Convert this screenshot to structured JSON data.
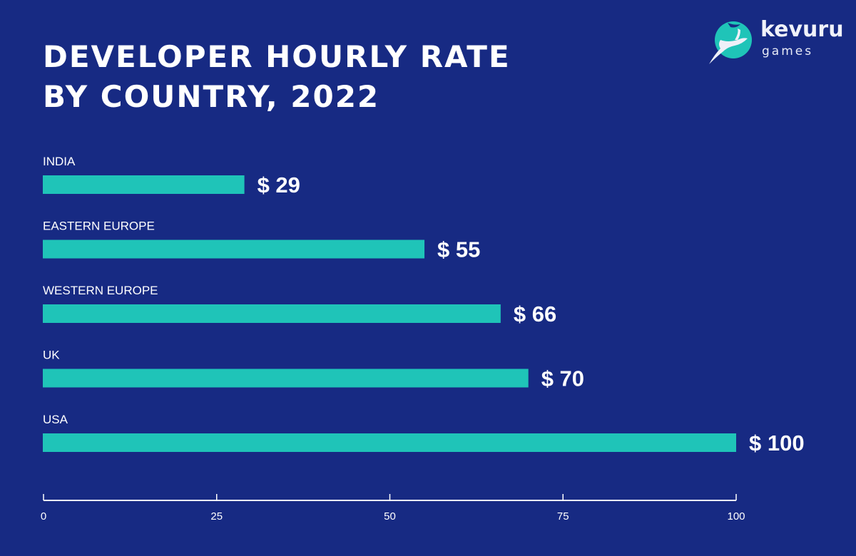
{
  "chart_data": {
    "type": "bar",
    "orientation": "horizontal",
    "title": "DEVELOPER HOURLY RATE BY COUNTRY, 2022",
    "title_lines": [
      "DEVELOPER HOURLY RATE",
      "BY COUNTRY, 2022"
    ],
    "categories": [
      "INDIA",
      "EASTERN EUROPE",
      "WESTERN EUROPE",
      "UK",
      "USA"
    ],
    "values": [
      29,
      55,
      66,
      70,
      100
    ],
    "value_labels": [
      "$ 29",
      "$ 55",
      "$ 66",
      "$ 70",
      "$ 100"
    ],
    "xlim": [
      0,
      100
    ],
    "xticks": [
      0,
      25,
      50,
      75,
      100
    ],
    "xlabel": "",
    "ylabel": "",
    "grid": false,
    "colors": {
      "background": "#172a83",
      "bar": "#1fc4b8",
      "text": "#ffffff"
    }
  },
  "logo": {
    "name": "kevuru",
    "sub": "games",
    "icon": "deer-circle-icon",
    "color": "#1fc4b8"
  }
}
